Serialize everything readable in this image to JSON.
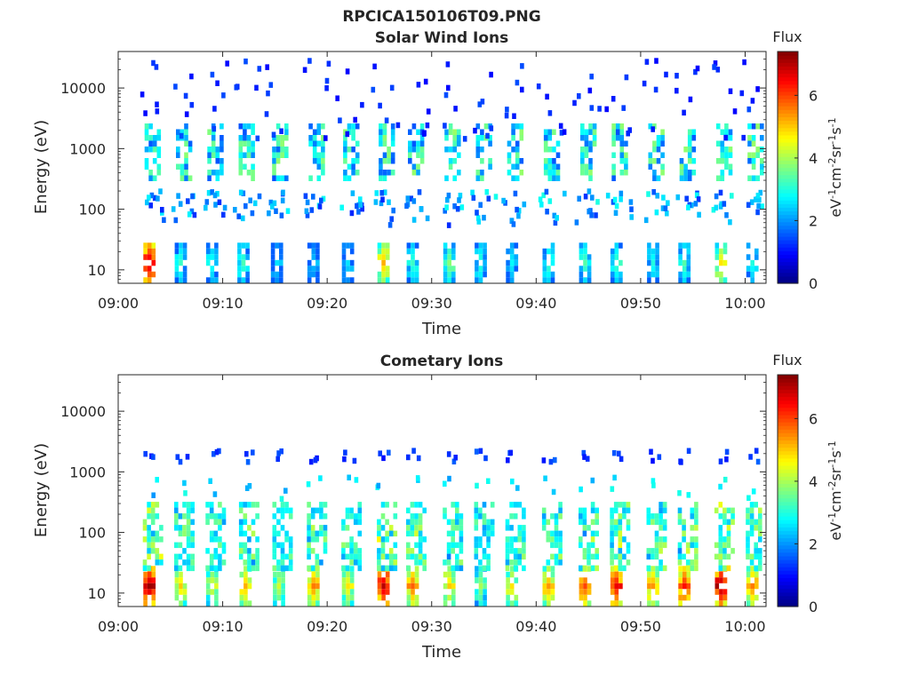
{
  "figure": {
    "title": "RPCICA150106T09.PNG"
  },
  "chart_data": [
    {
      "type": "heatmap",
      "title": "Solar Wind Ions",
      "xlabel": "Time",
      "ylabel": "Energy (eV)",
      "x_ticks": [
        "09:00",
        "09:10",
        "09:20",
        "09:30",
        "09:40",
        "09:50",
        "10:00"
      ],
      "xlim_minutes": [
        0,
        62
      ],
      "y_ticks": [
        "10",
        "100",
        "1000",
        "10000"
      ],
      "ylim": [
        6,
        40000
      ],
      "yscale": "log",
      "colorbar": {
        "title": "Flux",
        "label": "eV-1cm-2sr-1s-1",
        "ticks": [
          "0",
          "2",
          "4",
          "6"
        ],
        "range": [
          0,
          7.4
        ],
        "colormap": "jet"
      },
      "bursts": [
        {
          "t": 2.8,
          "v": 7.0
        },
        {
          "t": 5.8,
          "v": 3.2
        },
        {
          "t": 8.8,
          "v": 3.0
        },
        {
          "t": 11.8,
          "v": 3.3
        },
        {
          "t": 15.0,
          "v": 2.6
        },
        {
          "t": 18.5,
          "v": 2.4
        },
        {
          "t": 21.8,
          "v": 2.6
        },
        {
          "t": 25.2,
          "v": 5.2
        },
        {
          "t": 28.0,
          "v": 3.2
        },
        {
          "t": 31.5,
          "v": 3.8
        },
        {
          "t": 34.5,
          "v": 3.2
        },
        {
          "t": 37.5,
          "v": 2.8
        },
        {
          "t": 41.0,
          "v": 3.3
        },
        {
          "t": 44.5,
          "v": 3.4
        },
        {
          "t": 47.5,
          "v": 3.3
        },
        {
          "t": 51.0,
          "v": 3.0
        },
        {
          "t": 54.0,
          "v": 3.4
        },
        {
          "t": 57.5,
          "v": 4.8
        },
        {
          "t": 60.5,
          "v": 3.0
        }
      ]
    },
    {
      "type": "heatmap",
      "title": "Cometary Ions",
      "xlabel": "Time",
      "ylabel": "Energy (eV)",
      "x_ticks": [
        "09:00",
        "09:10",
        "09:20",
        "09:30",
        "09:40",
        "09:50",
        "10:00"
      ],
      "xlim_minutes": [
        0,
        62
      ],
      "y_ticks": [
        "10",
        "100",
        "1000",
        "10000"
      ],
      "ylim": [
        6,
        40000
      ],
      "yscale": "log",
      "colorbar": {
        "title": "Flux",
        "label": "eV-1cm-2sr-1s-1",
        "ticks": [
          "0",
          "2",
          "4",
          "6"
        ],
        "range": [
          0,
          7.4
        ],
        "colormap": "jet"
      },
      "bursts": [
        {
          "t": 2.8,
          "v": 7.2
        },
        {
          "t": 5.8,
          "v": 5.0
        },
        {
          "t": 8.8,
          "v": 4.5
        },
        {
          "t": 12.0,
          "v": 5.2
        },
        {
          "t": 15.2,
          "v": 4.3
        },
        {
          "t": 18.5,
          "v": 5.6
        },
        {
          "t": 21.8,
          "v": 4.8
        },
        {
          "t": 25.2,
          "v": 7.0
        },
        {
          "t": 28.0,
          "v": 5.8
        },
        {
          "t": 31.5,
          "v": 5.0
        },
        {
          "t": 34.5,
          "v": 4.0
        },
        {
          "t": 37.5,
          "v": 4.8
        },
        {
          "t": 41.0,
          "v": 5.4
        },
        {
          "t": 44.5,
          "v": 6.0
        },
        {
          "t": 47.5,
          "v": 6.6
        },
        {
          "t": 51.0,
          "v": 5.4
        },
        {
          "t": 54.0,
          "v": 6.4
        },
        {
          "t": 57.5,
          "v": 7.3
        },
        {
          "t": 60.5,
          "v": 5.6
        }
      ]
    }
  ]
}
